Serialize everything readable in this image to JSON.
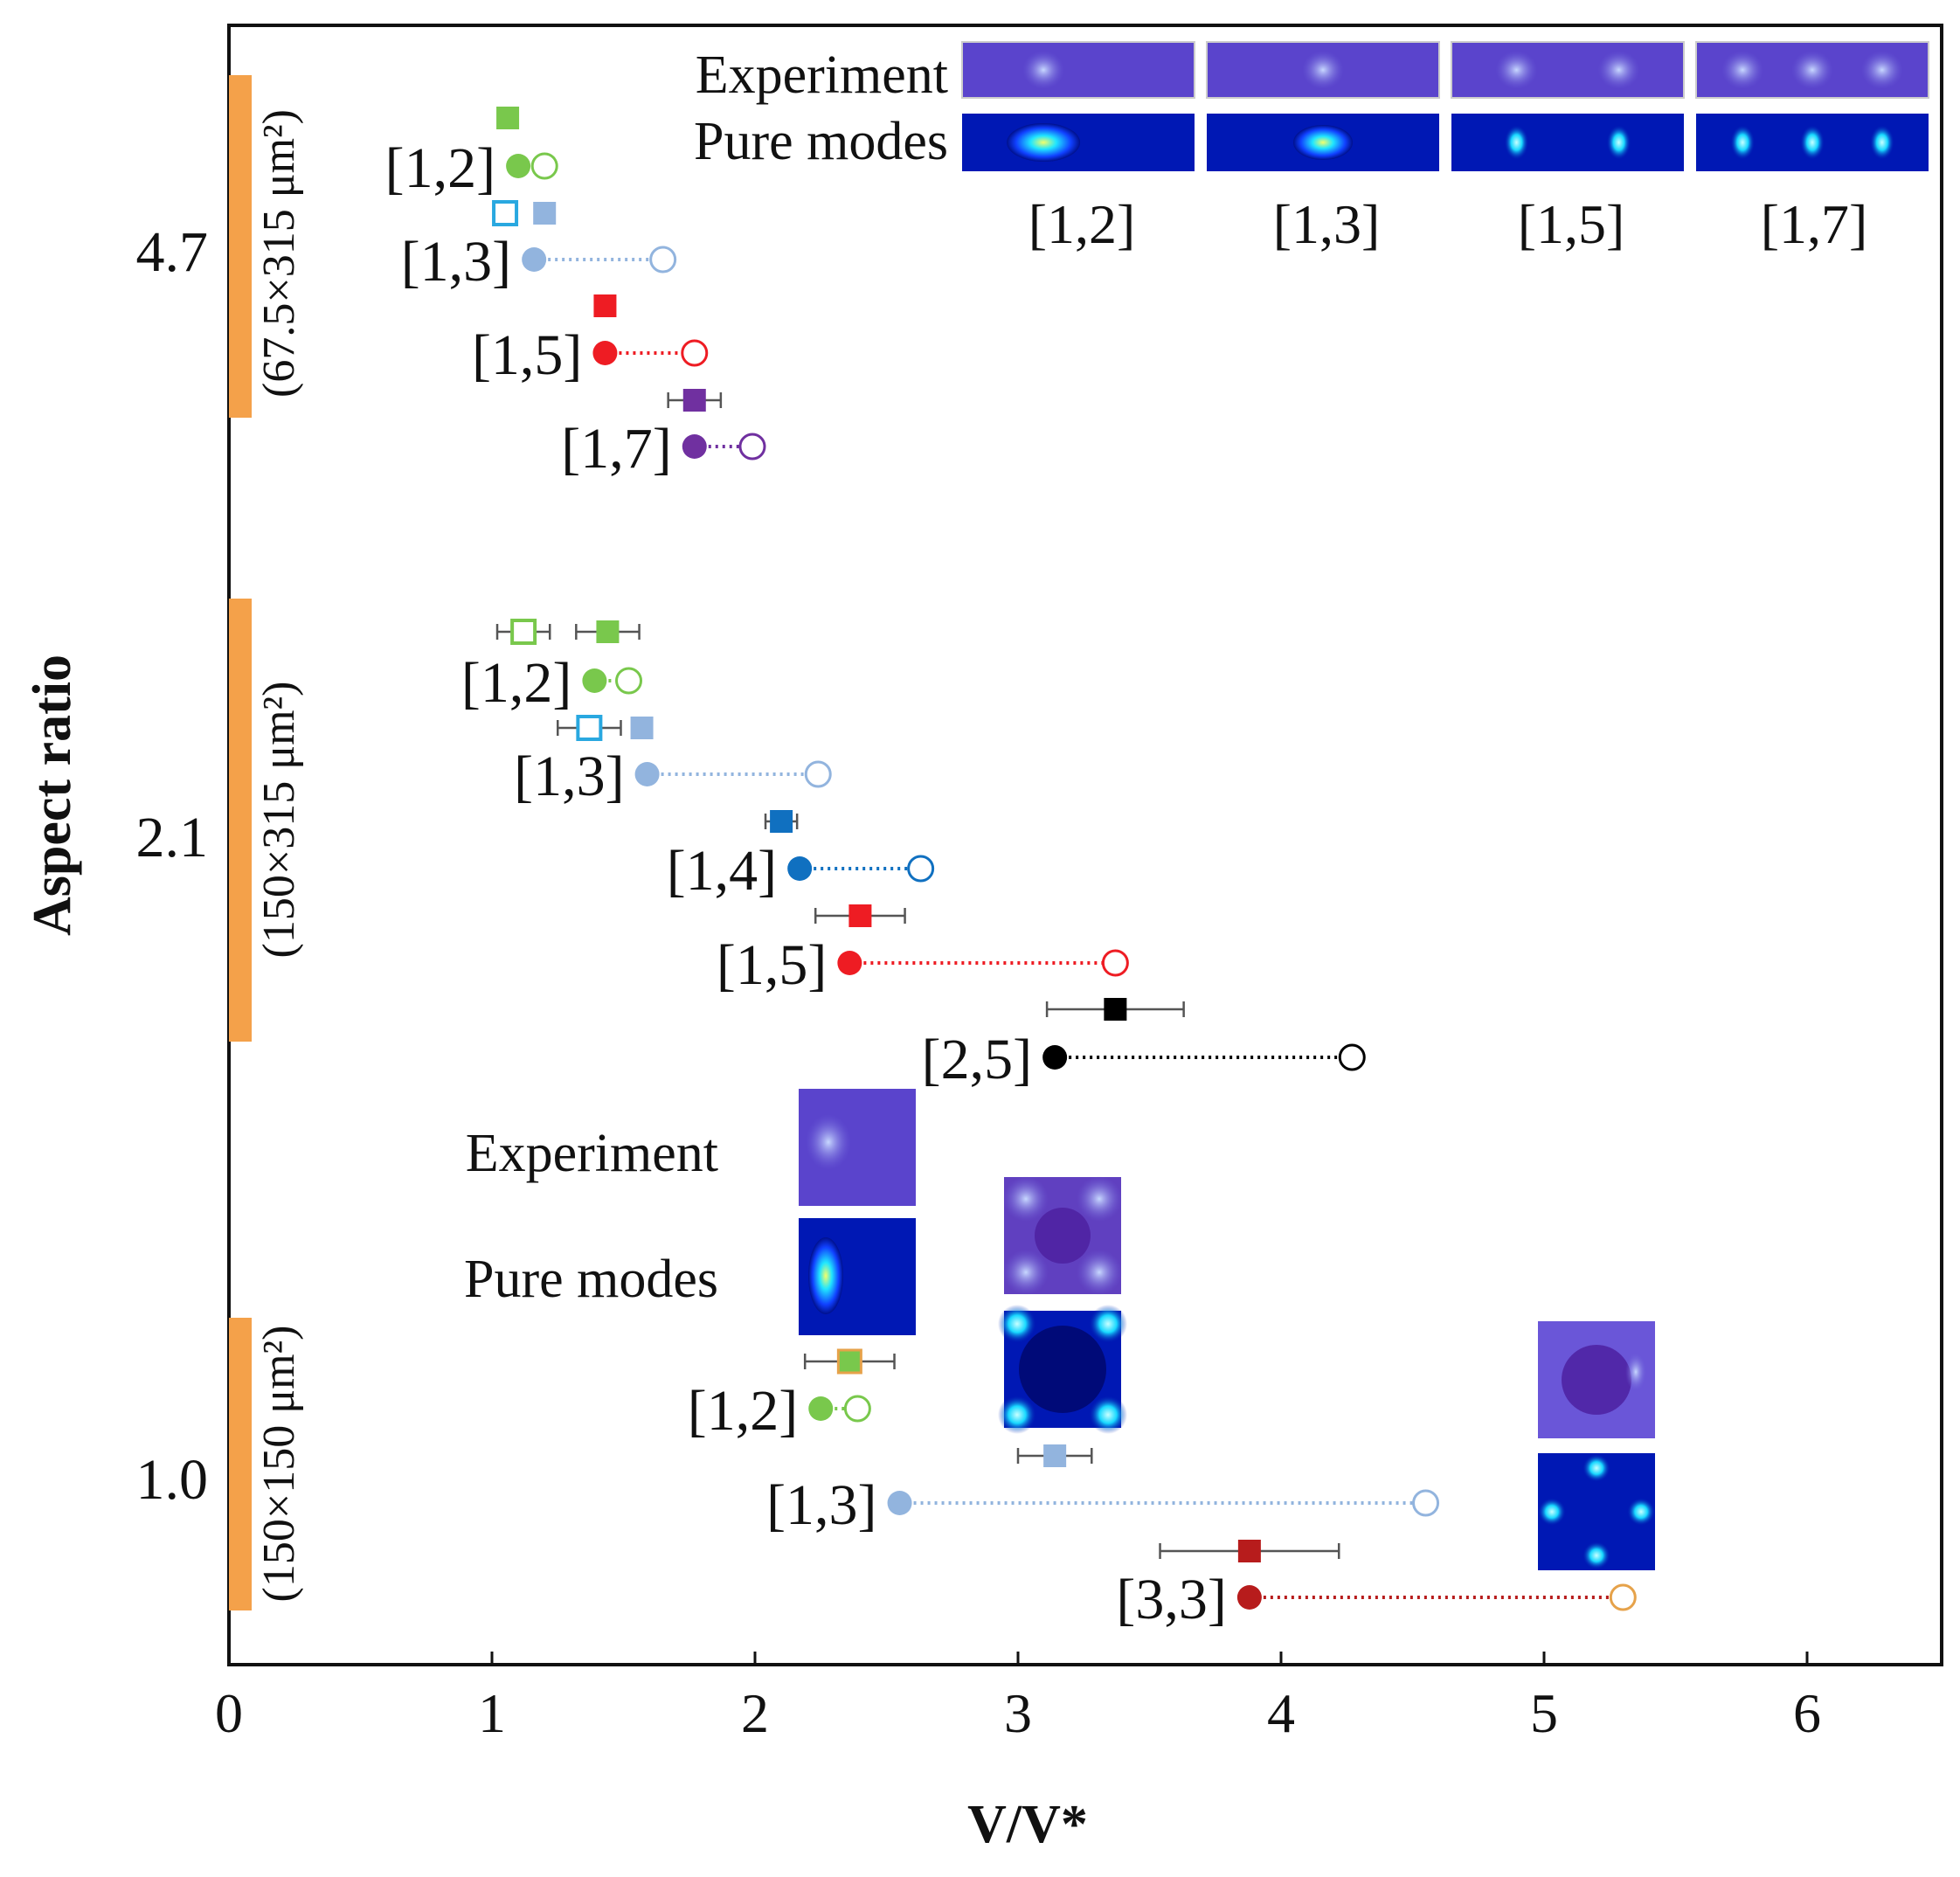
{
  "chart_data": {
    "type": "scatter",
    "xlabel": "V/V*",
    "ylabel": "Aspect ratio",
    "xlim": [
      0,
      6.5
    ],
    "x_ticks": [
      "0",
      "1",
      "2",
      "3",
      "4",
      "5",
      "6"
    ],
    "groups": [
      {
        "aspect_ratio_label": "4.7",
        "size_label": "(67.5×315 μm²)",
        "modes": [
          {
            "label": "[1,2]",
            "color": "#79C84C",
            "markers": [
              {
                "shape": "square",
                "filled": true,
                "x": 1.06
              },
              {
                "shape": "square",
                "filled": false,
                "x": 1.05,
                "color": "#29A8E0",
                "err": 0.03
              },
              {
                "shape": "square",
                "filled": true,
                "x": 1.2,
                "color": "#92B4DE"
              }
            ],
            "circle_filled": 1.1,
            "circle_open": 1.2
          },
          {
            "label": "[1,3]",
            "color": "#92B4DE",
            "markers": [],
            "circle_filled": 1.16,
            "circle_open": 1.65
          },
          {
            "label": "[1,5]",
            "color": "#EE1C23",
            "markers": [
              {
                "shape": "square",
                "filled": true,
                "x": 1.43
              }
            ],
            "circle_filled": 1.43,
            "circle_open": 1.77
          },
          {
            "label": "[1,7]",
            "color": "#7030A0",
            "markers": [
              {
                "shape": "square",
                "filled": true,
                "x": 1.77,
                "err": 0.1
              }
            ],
            "circle_filled": 1.77,
            "circle_open": 1.99
          }
        ]
      },
      {
        "aspect_ratio_label": "2.1",
        "size_label": "(150×315 μm²)",
        "modes": [
          {
            "label": "[1,2]",
            "color": "#79C84C",
            "markers": [
              {
                "shape": "square",
                "filled": false,
                "x": 1.12,
                "err": 0.1
              },
              {
                "shape": "square",
                "filled": true,
                "x": 1.44,
                "err": 0.12
              }
            ],
            "circle_filled": 1.39,
            "circle_open": 1.52
          },
          {
            "label": "[1,3]",
            "color": "#92B4DE",
            "markers": [
              {
                "shape": "square",
                "filled": false,
                "x": 1.37,
                "color": "#29A8E0",
                "err": 0.12
              },
              {
                "shape": "square",
                "filled": true,
                "x": 1.57
              }
            ],
            "circle_filled": 1.59,
            "circle_open": 2.24
          },
          {
            "label": "[1,4]",
            "color": "#1070C0",
            "markers": [
              {
                "shape": "square",
                "filled": true,
                "x": 2.1,
                "err": 0.06
              }
            ],
            "circle_filled": 2.17,
            "circle_open": 2.63
          },
          {
            "label": "[1,5]",
            "color": "#EE1C23",
            "markers": [
              {
                "shape": "square",
                "filled": true,
                "x": 2.4,
                "err": 0.17
              }
            ],
            "circle_filled": 2.36,
            "circle_open": 3.37
          },
          {
            "label": "[2,5]",
            "color": "#000000",
            "markers": [
              {
                "shape": "square",
                "filled": true,
                "x": 3.37,
                "err": 0.26
              }
            ],
            "circle_filled": 3.14,
            "circle_open": 4.27
          }
        ]
      },
      {
        "aspect_ratio_label": "1.0",
        "size_label": "(150×150 μm²)",
        "modes": [
          {
            "label": "[1,2]",
            "color": "#79C84C",
            "markers": [
              {
                "shape": "square",
                "filled": true,
                "x": 2.36,
                "err": 0.17,
                "edge": "#E6A24A"
              }
            ],
            "circle_filled": 2.25,
            "circle_open": 2.39
          },
          {
            "label": "[1,3]",
            "color": "#92B4DE",
            "markers": [
              {
                "shape": "square",
                "filled": true,
                "x": 3.14,
                "err": 0.14
              }
            ],
            "circle_filled": 2.55,
            "circle_open": 4.55
          },
          {
            "label": "[3,3]",
            "color": "#B71C1C",
            "markers": [
              {
                "shape": "square",
                "filled": true,
                "x": 3.88,
                "err": 0.34
              }
            ],
            "circle_filled": 3.88,
            "circle_open": 5.3,
            "open_color": "#E6A24A"
          }
        ]
      }
    ],
    "inset_top": {
      "row_labels": [
        "Experiment",
        "Pure modes"
      ],
      "modes": [
        "[1,2]",
        "[1,3]",
        "[1,5]",
        "[1,7]"
      ]
    },
    "inset_bottom": {
      "row_labels": [
        "Experiment",
        "Pure modes"
      ]
    }
  }
}
